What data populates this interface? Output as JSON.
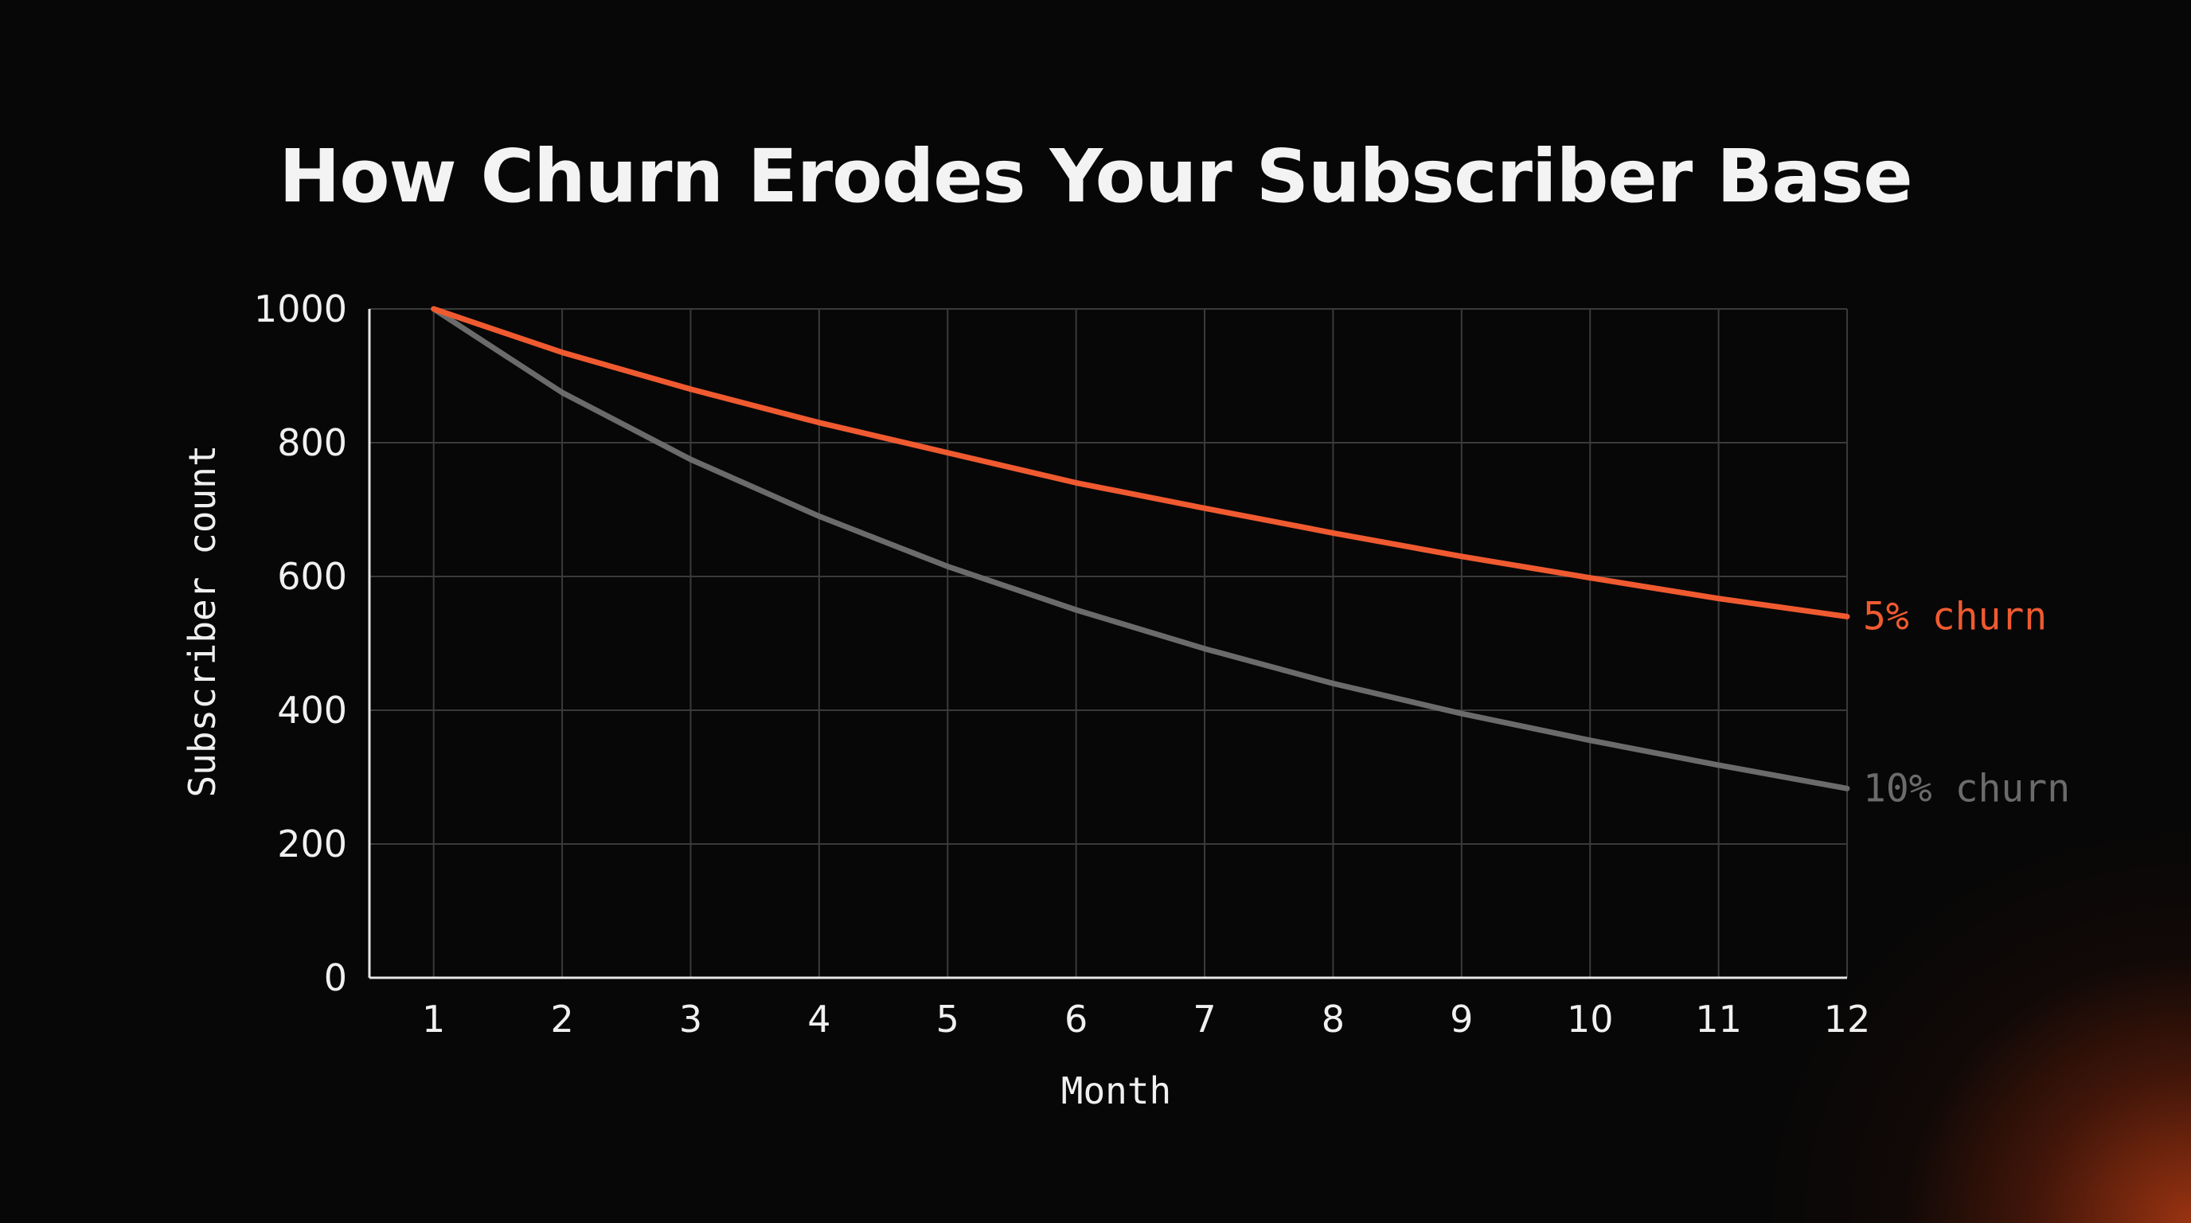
{
  "chart_data": {
    "type": "line",
    "title": "How Churn Erodes Your Subscriber Base",
    "xlabel": "Month",
    "ylabel": "Subscriber count",
    "x": [
      1,
      2,
      3,
      4,
      5,
      6,
      7,
      8,
      9,
      10,
      11,
      12
    ],
    "x_tick_labels": [
      "1",
      "2",
      "3",
      "4",
      "5",
      "6",
      "7",
      "8",
      "9",
      "10",
      "11",
      "12"
    ],
    "y_tick_labels": [
      "0",
      "200",
      "400",
      "600",
      "800",
      "1000"
    ],
    "y_ticks": [
      0,
      200,
      400,
      600,
      800,
      1000
    ],
    "ylim": [
      0,
      1000
    ],
    "xlim": [
      0.5,
      12
    ],
    "grid": true,
    "legend": "direct labels at right end of lines",
    "series": [
      {
        "name": "5% churn",
        "color": "#f05a30",
        "values": [
          1000,
          935,
          880,
          830,
          785,
          740,
          702,
          665,
          630,
          598,
          567,
          540
        ]
      },
      {
        "name": "10% churn",
        "color": "#6b6b6b",
        "values": [
          1000,
          875,
          775,
          690,
          615,
          550,
          492,
          440,
          395,
          355,
          318,
          283
        ]
      }
    ]
  }
}
